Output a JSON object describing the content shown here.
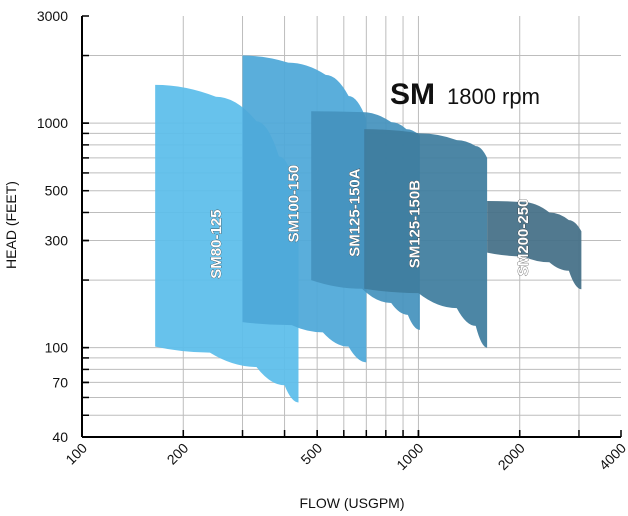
{
  "chart_data": {
    "type": "area",
    "title_bold": "SM",
    "title_rest": "1800 rpm",
    "xlabel": "FLOW (USGPM)",
    "ylabel": "HEAD (FEET)",
    "x_scale": "log",
    "y_scale": "log",
    "xlim": [
      100,
      4000
    ],
    "ylim": [
      40,
      3000
    ],
    "x_ticks": [
      100,
      200,
      500,
      1000,
      2000,
      4000
    ],
    "x_tick_labels": [
      "100",
      "200",
      "500",
      "1000",
      "2000",
      "4000"
    ],
    "y_ticks": [
      40,
      70,
      100,
      300,
      500,
      1000,
      3000
    ],
    "y_tick_labels": [
      "40",
      "70",
      "100",
      "300",
      "500",
      "1000",
      "3000"
    ],
    "x_grid": [
      200,
      300,
      400,
      500,
      600,
      700,
      800,
      900,
      1000,
      2000,
      3000
    ],
    "y_grid": [
      50,
      60,
      70,
      80,
      90,
      100,
      200,
      300,
      400,
      500,
      600,
      700,
      800,
      900,
      1000,
      2000
    ],
    "grid": true,
    "series": [
      {
        "name": "SM80-125",
        "color": "#5bbdeb",
        "top": [
          [
            165,
            1480
          ],
          [
            250,
            1310
          ],
          [
            330,
            1020
          ],
          [
            385,
            710
          ],
          [
            440,
            470
          ]
        ],
        "bottom": [
          [
            165,
            101
          ],
          [
            240,
            95
          ],
          [
            330,
            82
          ],
          [
            400,
            68
          ],
          [
            440,
            57
          ]
        ]
      },
      {
        "name": "SM100-150",
        "color": "#4ea8d8",
        "top": [
          [
            300,
            2000
          ],
          [
            410,
            1860
          ],
          [
            530,
            1640
          ],
          [
            620,
            1320
          ],
          [
            700,
            1040
          ]
        ],
        "bottom": [
          [
            300,
            130
          ],
          [
            420,
            126
          ],
          [
            520,
            117
          ],
          [
            620,
            101
          ],
          [
            700,
            86
          ]
        ]
      },
      {
        "name": "SM125-150A",
        "color": "#4592bd",
        "top": [
          [
            480,
            1130
          ],
          [
            680,
            1120
          ],
          [
            830,
            1010
          ],
          [
            920,
            940
          ],
          [
            1010,
            880
          ]
        ],
        "bottom": [
          [
            480,
            200
          ],
          [
            680,
            183
          ],
          [
            830,
            158
          ],
          [
            930,
            140
          ],
          [
            1010,
            120
          ]
        ]
      },
      {
        "name": "SM125-150B",
        "color": "#3e7d9e",
        "top": [
          [
            690,
            940
          ],
          [
            1010,
            900
          ],
          [
            1300,
            840
          ],
          [
            1480,
            790
          ],
          [
            1600,
            700
          ]
        ],
        "bottom": [
          [
            690,
            183
          ],
          [
            1000,
            175
          ],
          [
            1300,
            150
          ],
          [
            1480,
            125
          ],
          [
            1600,
            100
          ]
        ]
      },
      {
        "name": "SM200-250",
        "color": "#446f86",
        "top": [
          [
            1600,
            450
          ],
          [
            2050,
            445
          ],
          [
            2450,
            400
          ],
          [
            2800,
            370
          ],
          [
            3050,
            330
          ]
        ],
        "bottom": [
          [
            1600,
            265
          ],
          [
            2050,
            255
          ],
          [
            2450,
            240
          ],
          [
            2800,
            220
          ],
          [
            3050,
            182
          ]
        ]
      }
    ]
  }
}
